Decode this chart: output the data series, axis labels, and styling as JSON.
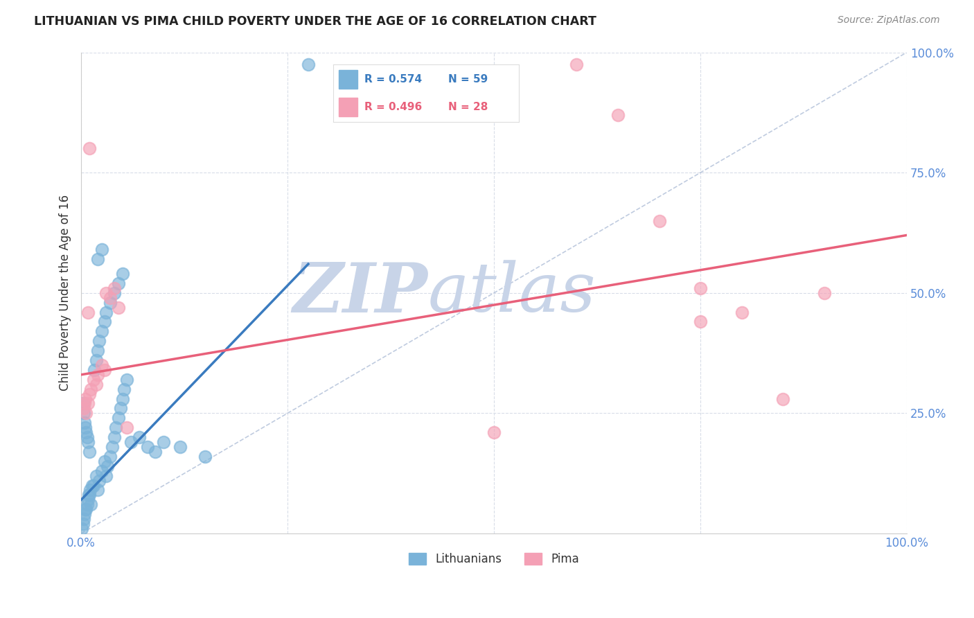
{
  "title": "LITHUANIAN VS PIMA CHILD POVERTY UNDER THE AGE OF 16 CORRELATION CHART",
  "source": "Source: ZipAtlas.com",
  "ylabel": "Child Poverty Under the Age of 16",
  "xlim": [
    0,
    1.0
  ],
  "ylim": [
    0,
    1.0
  ],
  "blue_color": "#7ab3d9",
  "pink_color": "#f4a0b5",
  "tick_label_color": "#5b8dd9",
  "blue_line_color": "#3a7bbf",
  "pink_line_color": "#e8607a",
  "diag_color": "#b0bfd8",
  "grid_color": "#d8dde8",
  "watermark_zip_color": "#c8d4e8",
  "watermark_atlas_color": "#c8d4e8",
  "background_color": "#ffffff",
  "blue_scatter": [
    [
      0.005,
      0.05
    ],
    [
      0.01,
      0.08
    ],
    [
      0.012,
      0.06
    ],
    [
      0.015,
      0.1
    ],
    [
      0.018,
      0.12
    ],
    [
      0.02,
      0.09
    ],
    [
      0.022,
      0.11
    ],
    [
      0.025,
      0.13
    ],
    [
      0.028,
      0.15
    ],
    [
      0.03,
      0.12
    ],
    [
      0.032,
      0.14
    ],
    [
      0.035,
      0.16
    ],
    [
      0.038,
      0.18
    ],
    [
      0.04,
      0.2
    ],
    [
      0.042,
      0.22
    ],
    [
      0.045,
      0.24
    ],
    [
      0.048,
      0.26
    ],
    [
      0.05,
      0.28
    ],
    [
      0.052,
      0.3
    ],
    [
      0.055,
      0.32
    ],
    [
      0.003,
      0.03
    ],
    [
      0.004,
      0.04
    ],
    [
      0.006,
      0.05
    ],
    [
      0.007,
      0.06
    ],
    [
      0.008,
      0.07
    ],
    [
      0.009,
      0.08
    ],
    [
      0.011,
      0.09
    ],
    [
      0.013,
      0.1
    ],
    [
      0.016,
      0.34
    ],
    [
      0.018,
      0.36
    ],
    [
      0.02,
      0.38
    ],
    [
      0.022,
      0.4
    ],
    [
      0.025,
      0.42
    ],
    [
      0.028,
      0.44
    ],
    [
      0.03,
      0.46
    ],
    [
      0.035,
      0.48
    ],
    [
      0.04,
      0.5
    ],
    [
      0.045,
      0.52
    ],
    [
      0.05,
      0.54
    ],
    [
      0.06,
      0.19
    ],
    [
      0.07,
      0.2
    ],
    [
      0.08,
      0.18
    ],
    [
      0.09,
      0.17
    ],
    [
      0.1,
      0.19
    ],
    [
      0.12,
      0.18
    ],
    [
      0.15,
      0.16
    ],
    [
      0.02,
      0.57
    ],
    [
      0.025,
      0.59
    ],
    [
      0.275,
      0.975
    ],
    [
      0.002,
      0.27
    ],
    [
      0.003,
      0.25
    ],
    [
      0.004,
      0.23
    ],
    [
      0.005,
      0.22
    ],
    [
      0.006,
      0.21
    ],
    [
      0.007,
      0.2
    ],
    [
      0.008,
      0.19
    ],
    [
      0.01,
      0.17
    ],
    [
      0.001,
      0.01
    ],
    [
      0.002,
      0.02
    ]
  ],
  "pink_scatter": [
    [
      0.005,
      0.28
    ],
    [
      0.008,
      0.27
    ],
    [
      0.01,
      0.29
    ],
    [
      0.012,
      0.3
    ],
    [
      0.015,
      0.32
    ],
    [
      0.018,
      0.31
    ],
    [
      0.02,
      0.33
    ],
    [
      0.025,
      0.35
    ],
    [
      0.028,
      0.34
    ],
    [
      0.03,
      0.5
    ],
    [
      0.035,
      0.49
    ],
    [
      0.04,
      0.51
    ],
    [
      0.045,
      0.47
    ],
    [
      0.008,
      0.46
    ],
    [
      0.01,
      0.8
    ],
    [
      0.003,
      0.26
    ],
    [
      0.004,
      0.27
    ],
    [
      0.006,
      0.25
    ],
    [
      0.055,
      0.22
    ],
    [
      0.5,
      0.21
    ],
    [
      0.6,
      0.975
    ],
    [
      0.65,
      0.87
    ],
    [
      0.7,
      0.65
    ],
    [
      0.75,
      0.44
    ],
    [
      0.8,
      0.46
    ],
    [
      0.85,
      0.28
    ],
    [
      0.9,
      0.5
    ],
    [
      0.75,
      0.51
    ]
  ],
  "blue_line_x": [
    0.0,
    0.275
  ],
  "blue_line_y": [
    0.07,
    0.56
  ],
  "pink_line_x": [
    0.0,
    1.0
  ],
  "pink_line_y": [
    0.33,
    0.62
  ]
}
